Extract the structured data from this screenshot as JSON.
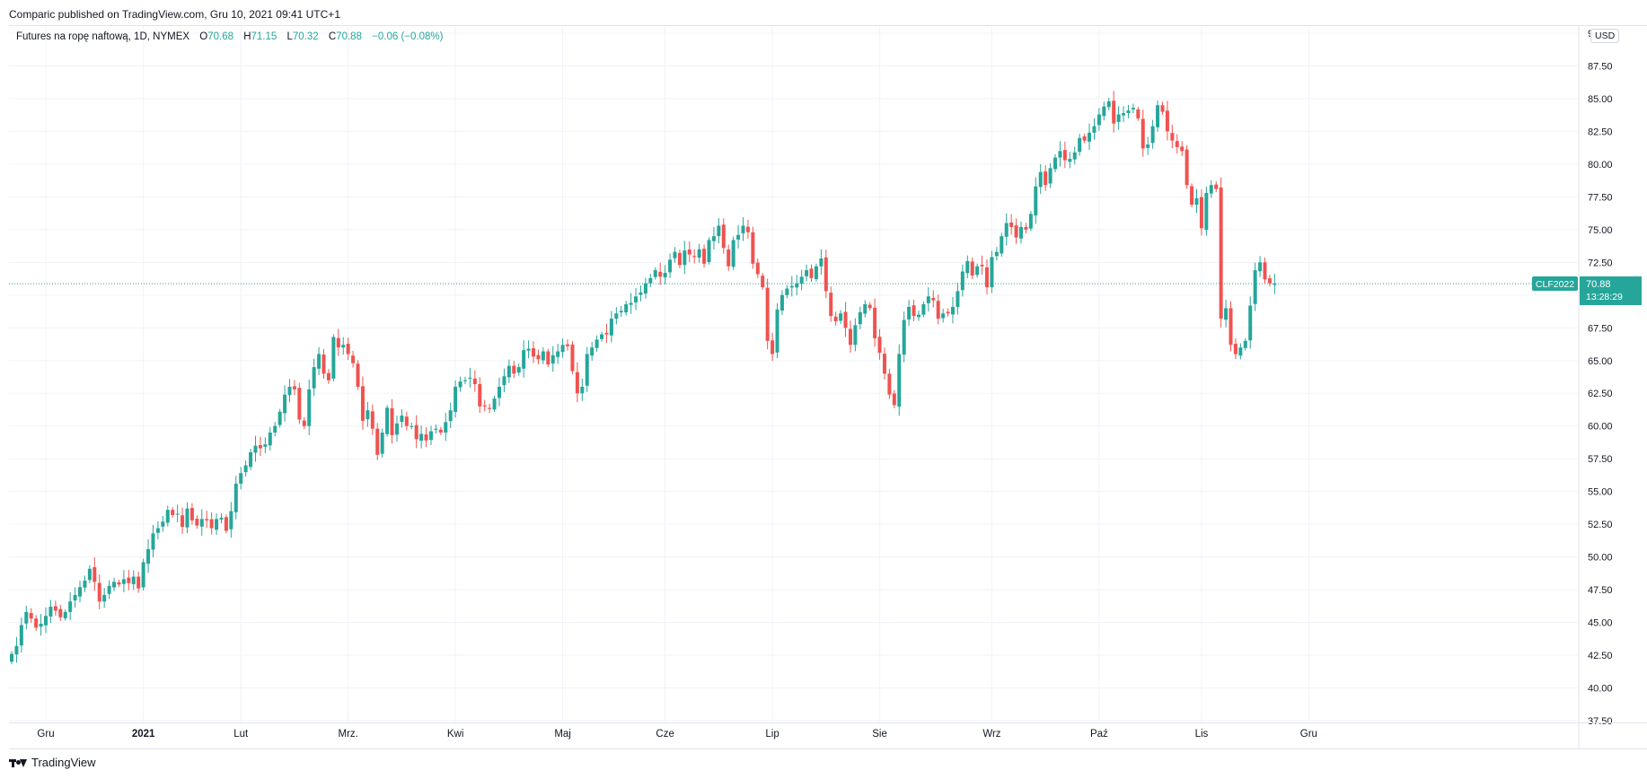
{
  "header": {
    "caption": "Comparic published on TradingView.com, Gru 10, 2021 09:41 UTC+1"
  },
  "legend": {
    "symbol": "Futures na ropę naftową, 1D, NYMEX",
    "o_label": "O",
    "o_value": "70.68",
    "h_label": "H",
    "h_value": "71.15",
    "l_label": "L",
    "l_value": "70.32",
    "c_label": "C",
    "c_value": "70.88",
    "change": "−0.06 (−0.08%)"
  },
  "currency_badge": "USD",
  "price_tag": {
    "ticker": "CLF2022",
    "price": "70.88",
    "countdown": "13:28:29"
  },
  "footer": {
    "brand": "TradingView",
    "logo_icon": "tradingview-logo-icon"
  },
  "colors": {
    "up": "#26a69a",
    "down": "#ef5350",
    "grid": "#f0f3fa",
    "axis_text": "#131722"
  },
  "chart_data": {
    "type": "candlestick",
    "y_axis_ticks": [
      "90.00",
      "87.50",
      "85.00",
      "82.50",
      "80.00",
      "77.50",
      "75.00",
      "72.50",
      "70.00",
      "67.50",
      "65.00",
      "62.50",
      "60.00",
      "57.50",
      "55.00",
      "52.50",
      "50.00",
      "47.50",
      "45.00",
      "42.50",
      "40.00",
      "37.50"
    ],
    "ylim": [
      37.5,
      90
    ],
    "x_axis_ticks": [
      "Gru",
      "2021",
      "Lut",
      "Mrz.",
      "Kwi",
      "Maj",
      "Cze",
      "Lip",
      "Sie",
      "Wrz",
      "Paź",
      "Lis",
      "Gru"
    ],
    "x_tick_day_index": [
      7,
      27,
      47,
      69,
      91,
      113,
      134,
      156,
      178,
      201,
      223,
      244,
      266
    ],
    "last_price": 70.88,
    "closes": [
      42.6,
      43.2,
      44.8,
      45.8,
      45.3,
      44.6,
      44.9,
      45.5,
      46.2,
      45.9,
      45.4,
      45.8,
      46.6,
      47.1,
      47.7,
      48.2,
      49.1,
      48.1,
      46.6,
      47.1,
      47.8,
      48.1,
      47.9,
      48.3,
      48.0,
      48.5,
      47.6,
      49.6,
      50.6,
      51.8,
      52.2,
      52.7,
      53.6,
      53.2,
      53.3,
      52.3,
      53.7,
      52.8,
      52.4,
      52.9,
      52.8,
      52.2,
      52.9,
      53.0,
      52.0,
      53.5,
      55.6,
      56.4,
      57.0,
      58.0,
      58.5,
      58.3,
      58.6,
      59.5,
      60.0,
      61.1,
      62.4,
      63.0,
      62.8,
      60.5,
      60.0,
      62.8,
      64.5,
      65.5,
      64.0,
      63.5,
      66.8,
      66.0,
      66.2,
      65.5,
      64.8,
      63.0,
      60.4,
      61.2,
      59.8,
      57.8,
      59.5,
      61.4,
      59.3,
      60.2,
      60.8,
      60.0,
      60.0,
      59.0,
      59.4,
      58.9,
      59.6,
      59.8,
      59.5,
      60.3,
      61.2,
      63.0,
      63.4,
      63.5,
      63.7,
      63.2,
      61.5,
      61.5,
      61.3,
      62.1,
      63.0,
      63.8,
      64.6,
      64.0,
      64.5,
      65.8,
      65.9,
      65.3,
      65.1,
      65.7,
      64.7,
      65.4,
      65.7,
      66.2,
      66.1,
      64.2,
      62.5,
      63.0,
      65.5,
      66.0,
      66.6,
      67.0,
      67.0,
      68.2,
      68.6,
      68.8,
      69.3,
      69.4,
      69.9,
      70.2,
      70.9,
      71.3,
      71.9,
      71.4,
      71.7,
      72.7,
      73.3,
      72.3,
      73.4,
      73.1,
      72.9,
      73.5,
      72.4,
      74.2,
      74.5,
      75.3,
      73.6,
      72.2,
      74.2,
      74.6,
      75.3,
      74.8,
      72.4,
      71.6,
      70.6,
      66.5,
      65.5,
      68.9,
      70.0,
      70.5,
      70.7,
      70.9,
      71.4,
      71.9,
      71.3,
      72.2,
      72.8,
      70.3,
      68.4,
      68.0,
      68.6,
      67.5,
      66.2,
      67.7,
      68.7,
      69.3,
      69.0,
      66.7,
      65.6,
      64.0,
      62.4,
      61.6,
      65.5,
      68.1,
      69.1,
      68.4,
      68.5,
      69.3,
      69.9,
      69.6,
      68.2,
      68.6,
      68.6,
      69.1,
      70.3,
      71.8,
      72.6,
      71.5,
      72.2,
      72.2,
      70.6,
      72.9,
      73.3,
      74.5,
      75.5,
      75.2,
      74.4,
      75.2,
      75.0,
      76.2,
      78.3,
      79.4,
      78.4,
      79.7,
      80.5,
      81.0,
      80.3,
      80.4,
      80.9,
      82.0,
      81.8,
      82.4,
      82.9,
      83.8,
      84.4,
      84.8,
      83.1,
      83.8,
      83.9,
      84.1,
      84.3,
      83.5,
      81.2,
      81.5,
      82.9,
      84.5,
      84.0,
      82.5,
      81.8,
      81.3,
      81.0,
      78.4,
      76.9,
      77.4,
      75.1,
      77.8,
      78.4,
      78.1,
      68.2,
      69.0,
      66.2,
      65.5,
      66.0,
      66.5,
      69.2,
      71.9,
      72.5,
      71.2,
      70.9,
      70.88
    ]
  }
}
